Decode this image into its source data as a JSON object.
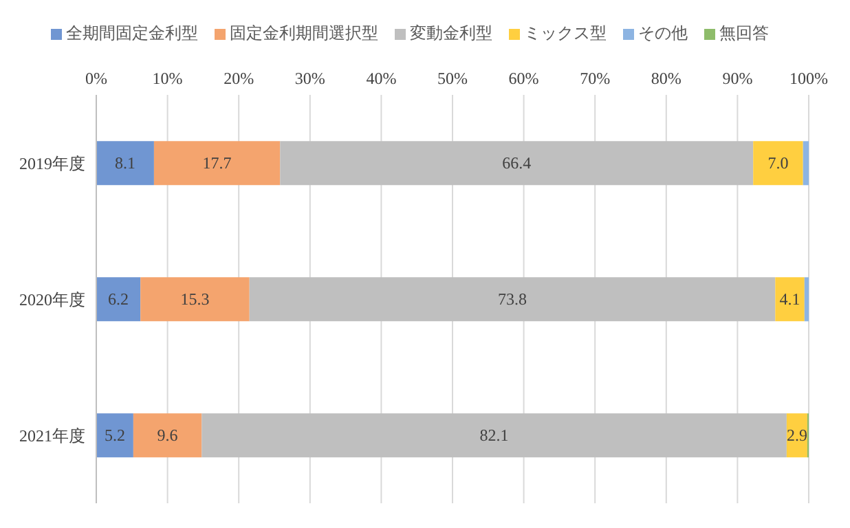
{
  "chart_data": {
    "type": "bar",
    "orientation": "horizontal",
    "stacked": true,
    "categories": [
      "2019年度",
      "2020年度",
      "2021年度"
    ],
    "series": [
      {
        "name": "全期間固定金利型",
        "color": "#7096d2",
        "values": [
          8.1,
          6.2,
          5.2
        ],
        "value_labels": [
          "8.1",
          "6.2",
          "5.2"
        ]
      },
      {
        "name": "固定金利期間選択型",
        "color": "#f4a46e",
        "values": [
          17.7,
          15.3,
          9.6
        ],
        "value_labels": [
          "17.7",
          "15.3",
          "9.6"
        ]
      },
      {
        "name": "変動金利型",
        "color": "#bfbfbf",
        "values": [
          66.4,
          73.8,
          82.1
        ],
        "value_labels": [
          "66.4",
          "73.8",
          "82.1"
        ]
      },
      {
        "name": "ミックス型",
        "color": "#ffcf40",
        "values": [
          7.0,
          4.1,
          2.9
        ],
        "value_labels": [
          "7.0",
          "4.1",
          "2.9"
        ]
      },
      {
        "name": "その他",
        "color": "#8db4e2",
        "values": [
          0.8,
          0.6,
          0
        ],
        "value_labels": [
          null,
          null,
          null
        ]
      },
      {
        "name": "無回答",
        "color": "#8ebc6a",
        "values": [
          0,
          0,
          0.2
        ],
        "value_labels": [
          null,
          null,
          null
        ]
      }
    ],
    "xlim": [
      0,
      100
    ],
    "xticks": [
      {
        "value": 0,
        "label": "0%"
      },
      {
        "value": 10,
        "label": "10%"
      },
      {
        "value": 20,
        "label": "20%"
      },
      {
        "value": 30,
        "label": "30%"
      },
      {
        "value": 40,
        "label": "40%"
      },
      {
        "value": 50,
        "label": "50%"
      },
      {
        "value": 60,
        "label": "60%"
      },
      {
        "value": 70,
        "label": "70%"
      },
      {
        "value": 80,
        "label": "80%"
      },
      {
        "value": 90,
        "label": "90%"
      },
      {
        "value": 100,
        "label": "100%"
      }
    ],
    "grid": "x",
    "legend": "top"
  }
}
